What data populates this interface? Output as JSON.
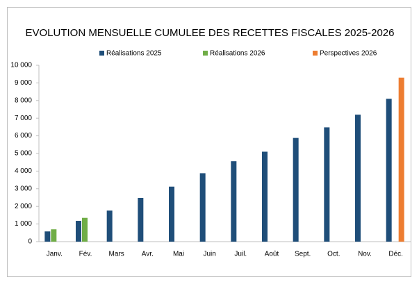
{
  "chart_data": {
    "type": "bar",
    "title": "EVOLUTION MENSUELLE CUMULEE DES RECETTES  FISCALES 2025-2026",
    "categories": [
      "Janv.",
      "Fév.",
      "Mars",
      "Avr.",
      "Mai",
      "Juin",
      "Juil.",
      "Août",
      "Sept.",
      "Oct.",
      "Nov.",
      "Déc."
    ],
    "series": [
      {
        "name": "Réalisations 2025",
        "color": "#1f4e79",
        "values": [
          580,
          1180,
          1760,
          2480,
          3120,
          3880,
          4560,
          5100,
          5880,
          6480,
          7200,
          8100
        ]
      },
      {
        "name": "Réalisations 2026",
        "color": "#70ad47",
        "values": [
          700,
          1350,
          null,
          null,
          null,
          null,
          null,
          null,
          null,
          null,
          null,
          null
        ]
      },
      {
        "name": "Perspectives 2026",
        "color": "#ed7d31",
        "values": [
          null,
          null,
          null,
          null,
          null,
          null,
          null,
          null,
          null,
          null,
          null,
          9300
        ]
      }
    ],
    "ylim": [
      0,
      10000
    ],
    "yticks": [
      0,
      {
        "value": 1000,
        "label": "1 000"
      },
      {
        "value": 2000,
        "label": "2 000"
      },
      {
        "value": 3000,
        "label": "3 000"
      },
      {
        "value": 4000,
        "label": "4 000"
      },
      {
        "value": 5000,
        "label": "5 000"
      },
      {
        "value": 6000,
        "label": "6 000"
      },
      {
        "value": 7000,
        "label": "7 000"
      },
      {
        "value": 8000,
        "label": "8 000"
      },
      {
        "value": 9000,
        "label": "9 000"
      },
      {
        "value": 10000,
        "label": "10 000"
      }
    ],
    "grid": false,
    "legend": "top"
  }
}
